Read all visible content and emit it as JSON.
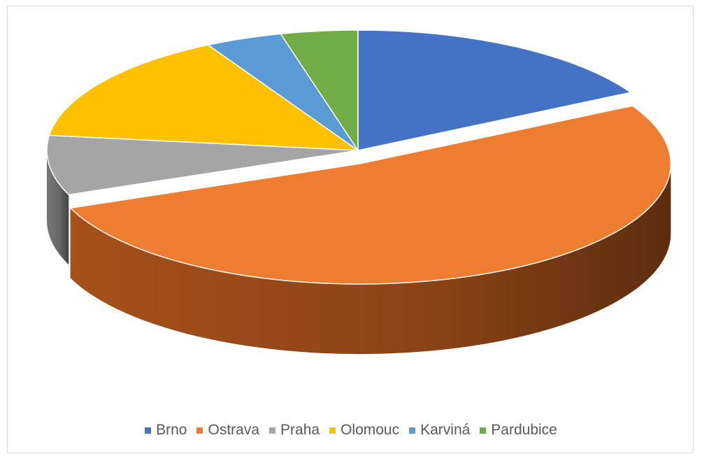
{
  "chart_data": {
    "type": "pie",
    "style": "3d",
    "categories": [
      "Brno",
      "Ostrava",
      "Praha",
      "Olomouc",
      "Karviná",
      "Pardubice"
    ],
    "values": [
      17,
      52,
      8,
      15,
      4,
      4
    ],
    "colors": [
      "#4472C4",
      "#ED7D31",
      "#A5A5A5",
      "#FFC000",
      "#5B9BD5",
      "#70AD47"
    ],
    "side_colors": [
      "#2c4f8e",
      "#a9521a",
      "#7a7a7a",
      "#b98a00",
      "#3f73a3",
      "#4d7c31"
    ],
    "exploded": "Ostrava",
    "legend": "bottom",
    "start": "top, clockwise"
  }
}
